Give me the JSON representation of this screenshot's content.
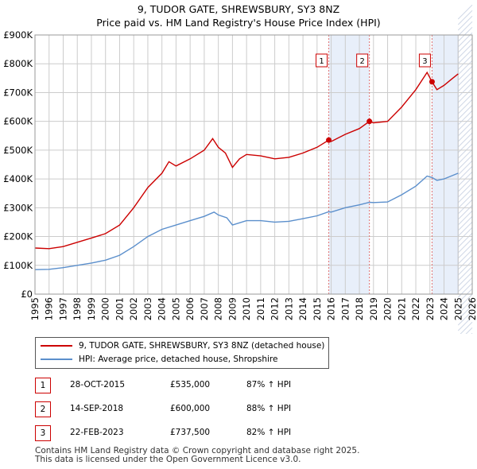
{
  "title": "9, TUDOR GATE, SHREWSBURY, SY3 8NZ",
  "subtitle": "Price paid vs. HM Land Registry's House Price Index (HPI)",
  "colors": {
    "property": "#cc0000",
    "hpi": "#5b8fcc",
    "shade": "#e8effa",
    "grid": "#cccccc",
    "marker_line": "#e07070"
  },
  "chart_data": {
    "type": "line",
    "title": "9, TUDOR GATE, SHREWSBURY, SY3 8NZ",
    "subtitle": "Price paid vs. HM Land Registry's House Price Index (HPI)",
    "xlim": [
      1995,
      2026
    ],
    "ylim": [
      0,
      900000
    ],
    "x_ticks": [
      "1995",
      "1996",
      "1997",
      "1998",
      "1999",
      "2000",
      "2001",
      "2002",
      "2003",
      "2004",
      "2005",
      "2006",
      "2007",
      "2008",
      "2009",
      "2010",
      "2011",
      "2012",
      "2013",
      "2014",
      "2015",
      "2016",
      "2017",
      "2018",
      "2019",
      "2020",
      "2021",
      "2022",
      "2023",
      "2024",
      "2025",
      "2026"
    ],
    "y_ticks": [
      {
        "value": 0,
        "label": "£0"
      },
      {
        "value": 100000,
        "label": "£100K"
      },
      {
        "value": 200000,
        "label": "£200K"
      },
      {
        "value": 300000,
        "label": "£300K"
      },
      {
        "value": 400000,
        "label": "£400K"
      },
      {
        "value": 500000,
        "label": "£500K"
      },
      {
        "value": 600000,
        "label": "£600K"
      },
      {
        "value": 700000,
        "label": "£700K"
      },
      {
        "value": 800000,
        "label": "£800K"
      },
      {
        "value": 900000,
        "label": "£900K"
      }
    ],
    "grid": true,
    "legend_position": "below",
    "series": [
      {
        "name": "9, TUDOR GATE, SHREWSBURY, SY3 8NZ (detached house)",
        "color": "#cc0000",
        "points": [
          [
            1995,
            160000
          ],
          [
            1996,
            158000
          ],
          [
            1997,
            165000
          ],
          [
            1998,
            180000
          ],
          [
            1999,
            195000
          ],
          [
            2000,
            210000
          ],
          [
            2001,
            240000
          ],
          [
            2002,
            300000
          ],
          [
            2003,
            370000
          ],
          [
            2004,
            420000
          ],
          [
            2004.5,
            460000
          ],
          [
            2005,
            445000
          ],
          [
            2006,
            470000
          ],
          [
            2007,
            500000
          ],
          [
            2007.6,
            540000
          ],
          [
            2008,
            510000
          ],
          [
            2008.5,
            490000
          ],
          [
            2009,
            440000
          ],
          [
            2009.5,
            470000
          ],
          [
            2010,
            485000
          ],
          [
            2011,
            480000
          ],
          [
            2012,
            470000
          ],
          [
            2013,
            475000
          ],
          [
            2014,
            490000
          ],
          [
            2015,
            510000
          ],
          [
            2015.83,
            535000
          ],
          [
            2016,
            530000
          ],
          [
            2017,
            555000
          ],
          [
            2018,
            575000
          ],
          [
            2018.71,
            600000
          ],
          [
            2019,
            595000
          ],
          [
            2020,
            600000
          ],
          [
            2021,
            650000
          ],
          [
            2022,
            710000
          ],
          [
            2022.8,
            770000
          ],
          [
            2023.15,
            737500
          ],
          [
            2023.5,
            710000
          ],
          [
            2024,
            725000
          ],
          [
            2024.5,
            745000
          ],
          [
            2025,
            765000
          ]
        ]
      },
      {
        "name": "HPI: Average price, detached house, Shropshire",
        "color": "#5b8fcc",
        "points": [
          [
            1995,
            85000
          ],
          [
            1996,
            86000
          ],
          [
            1997,
            92000
          ],
          [
            1998,
            100000
          ],
          [
            1999,
            108000
          ],
          [
            2000,
            118000
          ],
          [
            2001,
            135000
          ],
          [
            2002,
            165000
          ],
          [
            2003,
            200000
          ],
          [
            2004,
            225000
          ],
          [
            2005,
            240000
          ],
          [
            2006,
            255000
          ],
          [
            2007,
            270000
          ],
          [
            2007.7,
            285000
          ],
          [
            2008,
            275000
          ],
          [
            2008.6,
            265000
          ],
          [
            2009,
            240000
          ],
          [
            2010,
            255000
          ],
          [
            2011,
            255000
          ],
          [
            2012,
            250000
          ],
          [
            2013,
            253000
          ],
          [
            2014,
            262000
          ],
          [
            2015,
            272000
          ],
          [
            2015.83,
            286000
          ],
          [
            2016,
            285000
          ],
          [
            2017,
            300000
          ],
          [
            2018,
            310000
          ],
          [
            2018.71,
            319000
          ],
          [
            2019,
            318000
          ],
          [
            2020,
            320000
          ],
          [
            2021,
            345000
          ],
          [
            2022,
            375000
          ],
          [
            2022.8,
            410000
          ],
          [
            2023.15,
            405000
          ],
          [
            2023.5,
            395000
          ],
          [
            2024,
            400000
          ],
          [
            2024.5,
            410000
          ],
          [
            2025,
            420000
          ]
        ]
      }
    ],
    "sales": [
      {
        "label": "1",
        "x": 2015.83,
        "value": 535000,
        "date": "28-OCT-2015",
        "price": "£535,000",
        "hpi": "87% ↑ HPI"
      },
      {
        "label": "2",
        "x": 2018.71,
        "value": 600000,
        "date": "14-SEP-2018",
        "price": "£600,000",
        "hpi": "88% ↑ HPI"
      },
      {
        "label": "3",
        "x": 2023.15,
        "value": 737500,
        "date": "22-FEB-2023",
        "price": "£737,500",
        "hpi": "82% ↑ HPI"
      }
    ],
    "future_shade_from": 2025.0
  },
  "legend": {
    "property_label": "9, TUDOR GATE, SHREWSBURY, SY3 8NZ (detached house)",
    "hpi_label": "HPI: Average price, detached house, Shropshire"
  },
  "footer": {
    "line1": "Contains HM Land Registry data © Crown copyright and database right 2025.",
    "line2": "This data is licensed under the Open Government Licence v3.0."
  }
}
